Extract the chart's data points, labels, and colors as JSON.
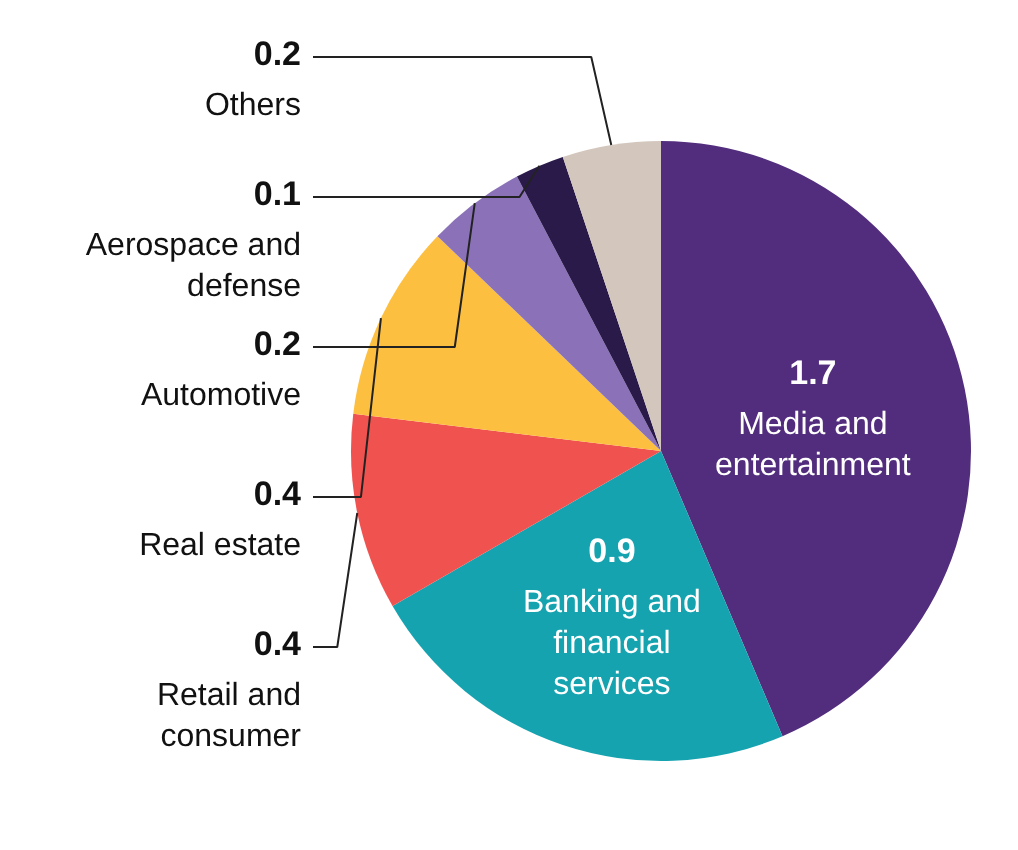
{
  "chart_data": {
    "type": "pie",
    "categories": [
      "Media and entertainment",
      "Banking and financial services",
      "Retail and consumer",
      "Real estate",
      "Automotive",
      "Aerospace and defense",
      "Others"
    ],
    "values": [
      1.7,
      0.9,
      0.4,
      0.4,
      0.2,
      0.1,
      0.2
    ],
    "colors": [
      "#522d7d",
      "#16a3b0",
      "#f0524f",
      "#fdbf3f",
      "#8b72b8",
      "#2a1a4a",
      "#d3c6bd"
    ],
    "data_labels": true
  }
}
